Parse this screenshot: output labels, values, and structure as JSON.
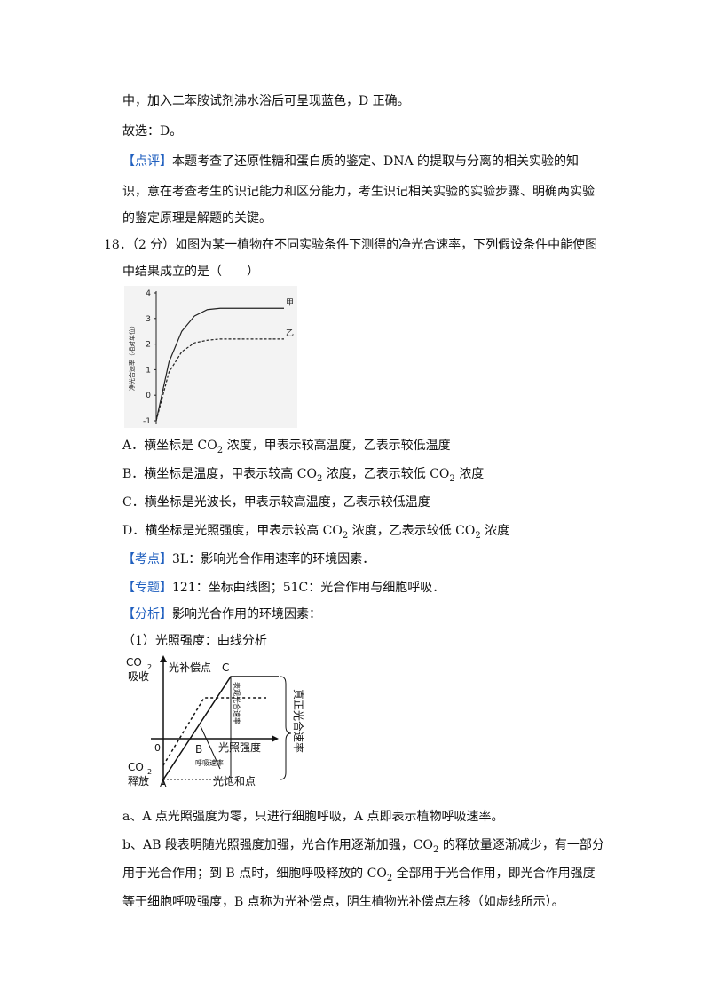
{
  "lines": {
    "l1": "中，加入二苯胺试剂沸水浴后可呈现蓝色，D 正确。",
    "l2": "故选：D。",
    "l3_tag": "【点评】",
    "l3": "本题考查了还原性糖和蛋白质的鉴定、DNA 的提取与分离的相关实验的知",
    "l4": "识，意在考查考生的识记能力和区分能力，考生识记相关实验的实验步骤、明确两实验",
    "l5": "的鉴定原理是解题的关键。",
    "q18a": "18．（2 分）如图为某一植物在不同实验条件下测得的净光合速率，下列假设条件中能使图",
    "q18b": "中结果成立的是（　　）"
  },
  "options": {
    "A_pre": "A．横坐标是 CO",
    "A_post": " 浓度，甲表示较高温度，乙表示较低温度",
    "B_pre": "B．横坐标是温度，甲表示较高 CO",
    "B_mid": " 浓度，乙表示较低 CO",
    "B_post": " 浓度",
    "C": "C．横坐标是光波长，甲表示较高温度，乙表示较低温度",
    "D_pre": "D．横坐标是光照强度，甲表示较高 CO",
    "D_mid": " 浓度，乙表示较低 CO",
    "D_post": " 浓度",
    "sub2": "2"
  },
  "analysis": {
    "kaodian_tag": "【考点】",
    "kaodian": "3L：影响光合作用速率的环境因素．",
    "zhuanti_tag": "【专题】",
    "zhuanti": "121：坐标曲线图；51C：光合作用与细胞呼吸．",
    "fenxi_tag": "【分析】",
    "fenxi": "影响光合作用的环境因素：",
    "sub1": "（1）光照强度：曲线分析",
    "a": "a、A 点光照强度为零，只进行细胞呼吸，A 点即表示植物呼吸速率。",
    "b1_pre": "b、AB 段表明随光照强度加强，光合作用逐渐加强，CO",
    "b1_post": " 的释放量逐渐减少，有一部分",
    "b2_pre": "用于光合作用；到 B 点时，细胞呼吸释放的 CO",
    "b2_post": " 全部用于光合作用，即光合作用强度",
    "b3": "等于细胞呼吸强度，B 点称为光补偿点，阴生植物光补偿点左移（如虚线所示）。"
  },
  "chart_data": {
    "type": "line",
    "ylabel": "净光合速率（相对单位）",
    "yticks": [
      "4",
      "3",
      "2",
      "1",
      "0",
      "-1"
    ],
    "ylim": [
      -1,
      4
    ],
    "series": [
      {
        "name": "甲",
        "x": [
          0,
          1,
          2,
          3,
          4,
          5,
          6,
          10
        ],
        "y": [
          -1,
          1.3,
          2.5,
          3.1,
          3.35,
          3.4,
          3.4,
          3.4
        ]
      },
      {
        "name": "乙",
        "x": [
          0,
          1,
          2,
          3,
          4,
          5,
          6,
          10
        ],
        "y": [
          -1,
          0.9,
          1.7,
          2.05,
          2.15,
          2.2,
          2.2,
          2.2
        ]
      }
    ]
  },
  "diagram": {
    "co2": "CO",
    "co2_sub": "2",
    "absorb": "吸收",
    "release": "释放",
    "zero": "0",
    "pointA": "A",
    "pointB": "B",
    "pointC": "C",
    "comp_point": "光补偿点",
    "light_int": "光照强度",
    "resp_rate": "呼吸速率",
    "sat_point": "光饱和点",
    "net_rate": "表观光合速率",
    "true_rate": "真正光合速率"
  }
}
